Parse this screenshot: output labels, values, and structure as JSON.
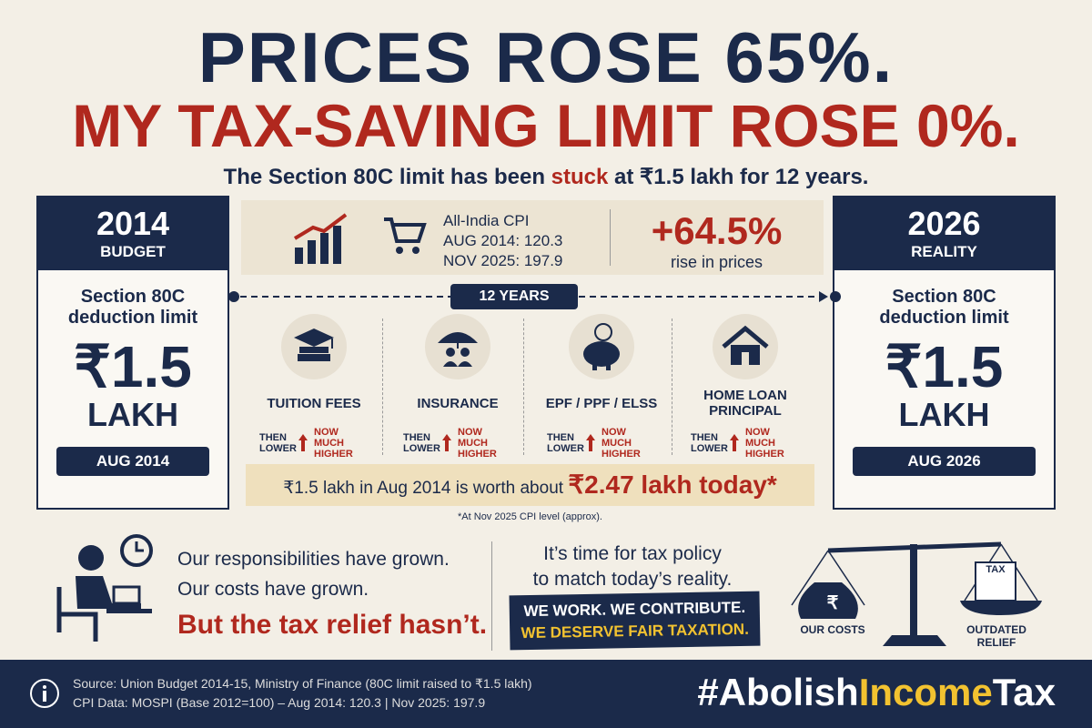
{
  "header": {
    "line1": "PRICES ROSE 65%.",
    "line2": "MY TAX-SAVING LIMIT ROSE 0%.",
    "subtitle_before": "The Section 80C limit has been",
    "subtitle_emph": "stuck",
    "subtitle_after": "at ₹1.5 lakh for 12 years."
  },
  "left_card": {
    "year": "2014",
    "tag": "BUDGET",
    "label": "Section 80C deduction limit",
    "amount": "₹1.5",
    "unit": "LAKH",
    "date": "AUG 2014"
  },
  "right_card": {
    "year": "2026",
    "tag": "REALITY",
    "label": "Section 80C deduction limit",
    "amount": "₹1.5",
    "unit": "LAKH",
    "date": "AUG 2026"
  },
  "cpi": {
    "title": "All-India CPI",
    "aug": "AUG 2014: 120.3",
    "nov": "NOV 2025: 197.9",
    "change": "+64.5%",
    "change_label": "rise in prices"
  },
  "timeline": "12 YEARS",
  "categories": [
    {
      "label": "TUITION FEES",
      "then": "THEN LOWER",
      "now": "NOW MUCH HIGHER"
    },
    {
      "label": "INSURANCE",
      "then": "THEN LOWER",
      "now": "NOW MUCH HIGHER"
    },
    {
      "label": "EPF / PPF / ELSS",
      "then": "THEN LOWER",
      "now": "NOW MUCH HIGHER"
    },
    {
      "label": "HOME LOAN PRINCIPAL",
      "then": "THEN LOWER",
      "now": "NOW MUCH HIGHER"
    }
  ],
  "worth": {
    "text": "₹1.5 lakh in Aug 2014 is worth about",
    "emph": "₹2.47 lakh today*",
    "note": "*At Nov 2025 CPI level (approx)."
  },
  "message": {
    "line1": "Our responsibilities have grown.",
    "line2": "Our costs have grown.",
    "line3": "But the tax relief hasn’t."
  },
  "policy": {
    "line1": "It’s time for tax policy",
    "line2": "to match today’s reality.",
    "banner1": "WE WORK. WE CONTRIBUTE.",
    "banner2": "WE DESERVE FAIR TAXATION."
  },
  "scale": {
    "left": "OUR COSTS",
    "right": "OUTDATED RELIEF",
    "tax": "TAX",
    "coin": "₹"
  },
  "footer": {
    "source1": "Source: Union Budget 2014-15, Ministry of Finance (80C limit raised to ₹1.5 lakh)",
    "source2": "CPI Data: MOSPI (Base 2012=100) – Aug 2014: 120.3  |  Nov 2025: 197.9",
    "hashtag1": "#Abolish",
    "hashtag2": "Income",
    "hashtag3": "Tax"
  }
}
